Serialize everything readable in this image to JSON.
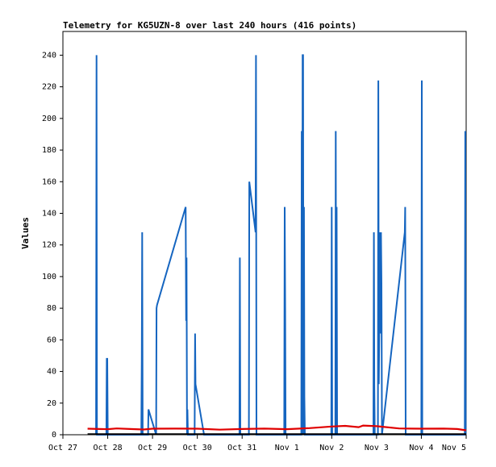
{
  "chart_data": {
    "type": "line",
    "title": "Telemetry for KG5UZN-8 over last 240 hours (416 points)",
    "ylabel": "Values",
    "xlabel": "",
    "ylim": [
      0,
      255
    ],
    "xlim": [
      0,
      9
    ],
    "y_ticks": [
      0,
      20,
      40,
      60,
      80,
      100,
      120,
      140,
      160,
      180,
      200,
      220,
      240
    ],
    "x_ticks": [
      {
        "pos": 0,
        "label": "Oct 27"
      },
      {
        "pos": 1,
        "label": "Oct 28"
      },
      {
        "pos": 2,
        "label": "Oct 29"
      },
      {
        "pos": 3,
        "label": "Oct 30"
      },
      {
        "pos": 4,
        "label": "Oct 31"
      },
      {
        "pos": 5,
        "label": "Nov 1"
      },
      {
        "pos": 6,
        "label": "Nov 2"
      },
      {
        "pos": 7,
        "label": "Nov 3"
      },
      {
        "pos": 8,
        "label": "Nov 4"
      },
      {
        "pos": 9,
        "label": "Nov 5"
      }
    ],
    "grid": false,
    "series": [
      {
        "color": "#1565c0",
        "points": [
          [
            0.74,
            0
          ],
          [
            0.75,
            240
          ],
          [
            0.76,
            0
          ],
          [
            0.97,
            0
          ],
          [
            0.98,
            48
          ],
          [
            0.99,
            48
          ],
          [
            1.0,
            0
          ],
          [
            1.75,
            0
          ],
          [
            1.76,
            48
          ],
          [
            1.77,
            128
          ],
          [
            1.78,
            0
          ],
          [
            1.9,
            0
          ],
          [
            1.91,
            16
          ],
          [
            2.08,
            0
          ],
          [
            2.09,
            80
          ],
          [
            2.1,
            82
          ],
          [
            2.74,
            144
          ],
          [
            2.75,
            72
          ],
          [
            2.76,
            112
          ],
          [
            2.77,
            0
          ],
          [
            2.78,
            16
          ],
          [
            2.79,
            0
          ],
          [
            2.94,
            0
          ],
          [
            2.95,
            64
          ],
          [
            2.96,
            32
          ],
          [
            3.15,
            0
          ],
          [
            3.94,
            0
          ],
          [
            3.95,
            112
          ],
          [
            3.96,
            0
          ],
          [
            4.15,
            0
          ],
          [
            4.16,
            160
          ],
          [
            4.3,
            128
          ],
          [
            4.31,
            240
          ],
          [
            4.32,
            0
          ],
          [
            4.94,
            0
          ],
          [
            4.95,
            144
          ],
          [
            4.96,
            80
          ],
          [
            4.97,
            0
          ],
          [
            5.32,
            0
          ],
          [
            5.33,
            192
          ],
          [
            5.34,
            0
          ],
          [
            5.35,
            240
          ],
          [
            5.36,
            240
          ],
          [
            5.37,
            0
          ],
          [
            5.38,
            144
          ],
          [
            5.39,
            24
          ],
          [
            5.4,
            0
          ],
          [
            5.99,
            0
          ],
          [
            6.0,
            144
          ],
          [
            6.01,
            0
          ],
          [
            6.08,
            0
          ],
          [
            6.09,
            192
          ],
          [
            6.1,
            0
          ],
          [
            6.11,
            144
          ],
          [
            6.12,
            0
          ],
          [
            6.93,
            0
          ],
          [
            6.94,
            128
          ],
          [
            6.95,
            32
          ],
          [
            6.96,
            0
          ],
          [
            7.03,
            0
          ],
          [
            7.04,
            224
          ],
          [
            7.05,
            32
          ],
          [
            7.08,
            128
          ],
          [
            7.09,
            64
          ],
          [
            7.1,
            128
          ],
          [
            7.11,
            96
          ],
          [
            7.12,
            0
          ],
          [
            7.63,
            128
          ],
          [
            7.64,
            144
          ],
          [
            7.65,
            0
          ],
          [
            8.0,
            0
          ],
          [
            8.01,
            224
          ],
          [
            8.02,
            0
          ],
          [
            8.97,
            0
          ],
          [
            8.98,
            192
          ],
          [
            8.99,
            0
          ]
        ]
      },
      {
        "color": "#e00000",
        "points": [
          [
            0.55,
            3.8
          ],
          [
            1.0,
            3.5
          ],
          [
            1.2,
            4
          ],
          [
            1.5,
            3.6
          ],
          [
            1.8,
            3.3
          ],
          [
            2.0,
            3.8
          ],
          [
            2.5,
            3.9
          ],
          [
            3.0,
            3.8
          ],
          [
            3.5,
            3.2
          ],
          [
            4.0,
            3.6
          ],
          [
            4.5,
            3.9
          ],
          [
            5.0,
            3.5
          ],
          [
            5.5,
            4.2
          ],
          [
            6.0,
            5.2
          ],
          [
            6.3,
            5.6
          ],
          [
            6.6,
            4.8
          ],
          [
            6.7,
            5.8
          ],
          [
            7.0,
            5.4
          ],
          [
            7.5,
            4.0
          ],
          [
            8.0,
            3.8
          ],
          [
            8.5,
            3.9
          ],
          [
            8.8,
            3.6
          ],
          [
            9.0,
            2.8
          ]
        ]
      },
      {
        "color": "#000000",
        "points": [
          [
            0.55,
            0.4
          ],
          [
            9.0,
            0.4
          ]
        ]
      }
    ]
  }
}
